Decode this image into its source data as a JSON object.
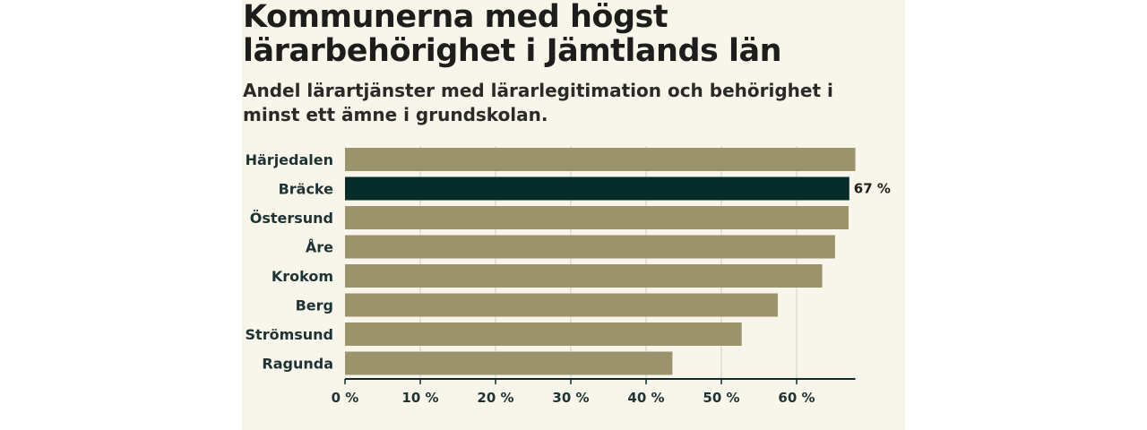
{
  "title": "Kommunerna med högst lärarbehörighet i Jämtlands län",
  "subtitle": "Andel lärartjänster med lärarlegitimation och behörighet i minst ett ämne i grundskolan.",
  "chart_data": {
    "type": "bar",
    "orientation": "horizontal",
    "title": "Kommunerna med högst lärarbehörighet i Jämtlands län",
    "subtitle": "Andel lärartjänster med lärarlegitimation och behörighet i minst ett ämne i grundskolan.",
    "categories": [
      "Härjedalen",
      "Bräcke",
      "Östersund",
      "Åre",
      "Krokom",
      "Berg",
      "Strömsund",
      "Ragunda"
    ],
    "values": [
      67.8,
      67.0,
      66.9,
      65.1,
      63.4,
      57.5,
      52.7,
      43.5
    ],
    "highlight": "Bräcke",
    "data_labels": [
      {
        "category": "Bräcke",
        "text": "67 %"
      }
    ],
    "xlim": [
      0,
      70
    ],
    "xticks": [
      0,
      10,
      20,
      30,
      40,
      50,
      60
    ],
    "xtick_labels": [
      "0 %",
      "10 %",
      "20 %",
      "30 %",
      "40 %",
      "50 %",
      "60 %"
    ],
    "xlabel": "",
    "ylabel": "",
    "grid": true,
    "colors": {
      "bar": "#9a936c",
      "highlight": "#062d2a",
      "grid": "#d9d6c8",
      "axis": "#0c2a2a",
      "label": "#1f3334"
    }
  }
}
